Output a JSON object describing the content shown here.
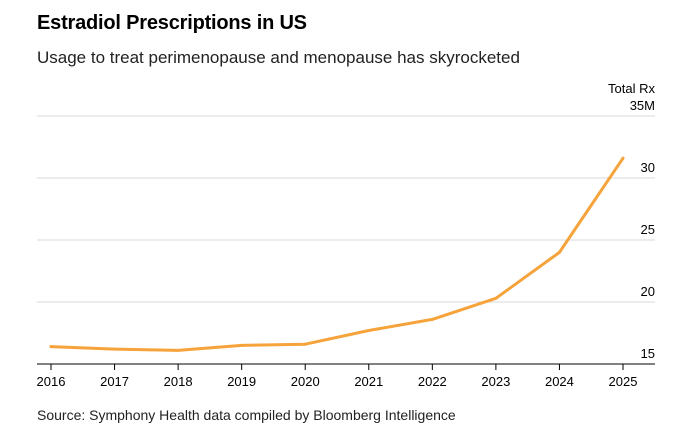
{
  "chart_data": {
    "type": "line",
    "title": "Estradiol Prescriptions in US",
    "subtitle": "Usage to treat perimenopause and menopause has skyrocketed",
    "source": "Source: Symphony Health data compiled by Bloomberg Intelligence",
    "ylabel": "Total Rx",
    "ylim": [
      15,
      35
    ],
    "y_ticks": [
      {
        "value": 35,
        "label": "35M"
      },
      {
        "value": 30,
        "label": "30"
      },
      {
        "value": 25,
        "label": "25"
      },
      {
        "value": 20,
        "label": "20"
      },
      {
        "value": 15,
        "label": "15"
      }
    ],
    "x_ticks": [
      "2016",
      "2017",
      "2018",
      "2019",
      "2020",
      "2021",
      "2022",
      "2023",
      "2024",
      "2025"
    ],
    "grid": true,
    "y_axis_position": "right",
    "series": [
      {
        "color": "#f5a33a",
        "points": [
          {
            "x": 2016.0,
            "y": 16.4
          },
          {
            "x": 2017.0,
            "y": 16.2
          },
          {
            "x": 2018.0,
            "y": 16.1
          },
          {
            "x": 2019.0,
            "y": 16.5
          },
          {
            "x": 2020.0,
            "y": 16.6
          },
          {
            "x": 2021.0,
            "y": 17.7
          },
          {
            "x": 2022.0,
            "y": 18.6
          },
          {
            "x": 2023.0,
            "y": 20.3
          },
          {
            "x": 2024.0,
            "y": 24.0
          },
          {
            "x": 2025.0,
            "y": 31.6
          }
        ]
      }
    ]
  }
}
